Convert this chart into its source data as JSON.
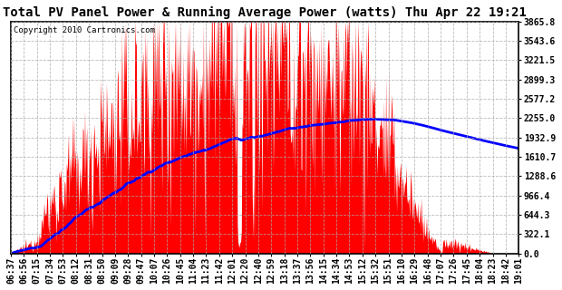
{
  "title": "Total PV Panel Power & Running Average Power (watts) Thu Apr 22 19:21",
  "copyright": "Copyright 2010 Cartronics.com",
  "background_color": "#ffffff",
  "plot_bg_color": "#ffffff",
  "bar_color": "#ff0000",
  "line_color": "#0000ff",
  "grid_color": "#aaaaaa",
  "ytick_labels": [
    "0.0",
    "322.1",
    "644.3",
    "966.4",
    "1288.6",
    "1610.7",
    "1932.9",
    "2255.0",
    "2577.2",
    "2899.3",
    "3221.5",
    "3543.6",
    "3865.8"
  ],
  "ytick_values": [
    0.0,
    322.1,
    644.3,
    966.4,
    1288.6,
    1610.7,
    1932.9,
    2255.0,
    2577.2,
    2899.3,
    3221.5,
    3543.6,
    3865.8
  ],
  "ymax": 3865.8,
  "ymin": 0.0,
  "xtick_labels": [
    "06:37",
    "06:56",
    "07:15",
    "07:34",
    "07:53",
    "08:12",
    "08:31",
    "08:50",
    "09:09",
    "09:28",
    "09:47",
    "10:07",
    "10:26",
    "10:45",
    "11:04",
    "11:23",
    "11:42",
    "12:01",
    "12:20",
    "12:40",
    "12:59",
    "13:18",
    "13:37",
    "13:56",
    "14:15",
    "14:34",
    "14:53",
    "15:12",
    "15:32",
    "15:51",
    "16:10",
    "16:29",
    "16:48",
    "17:07",
    "17:26",
    "17:45",
    "18:04",
    "18:23",
    "18:42",
    "19:01"
  ],
  "n_points": 750,
  "title_fontsize": 10,
  "copyright_fontsize": 6.5,
  "tick_fontsize": 7,
  "line_width": 2.0
}
